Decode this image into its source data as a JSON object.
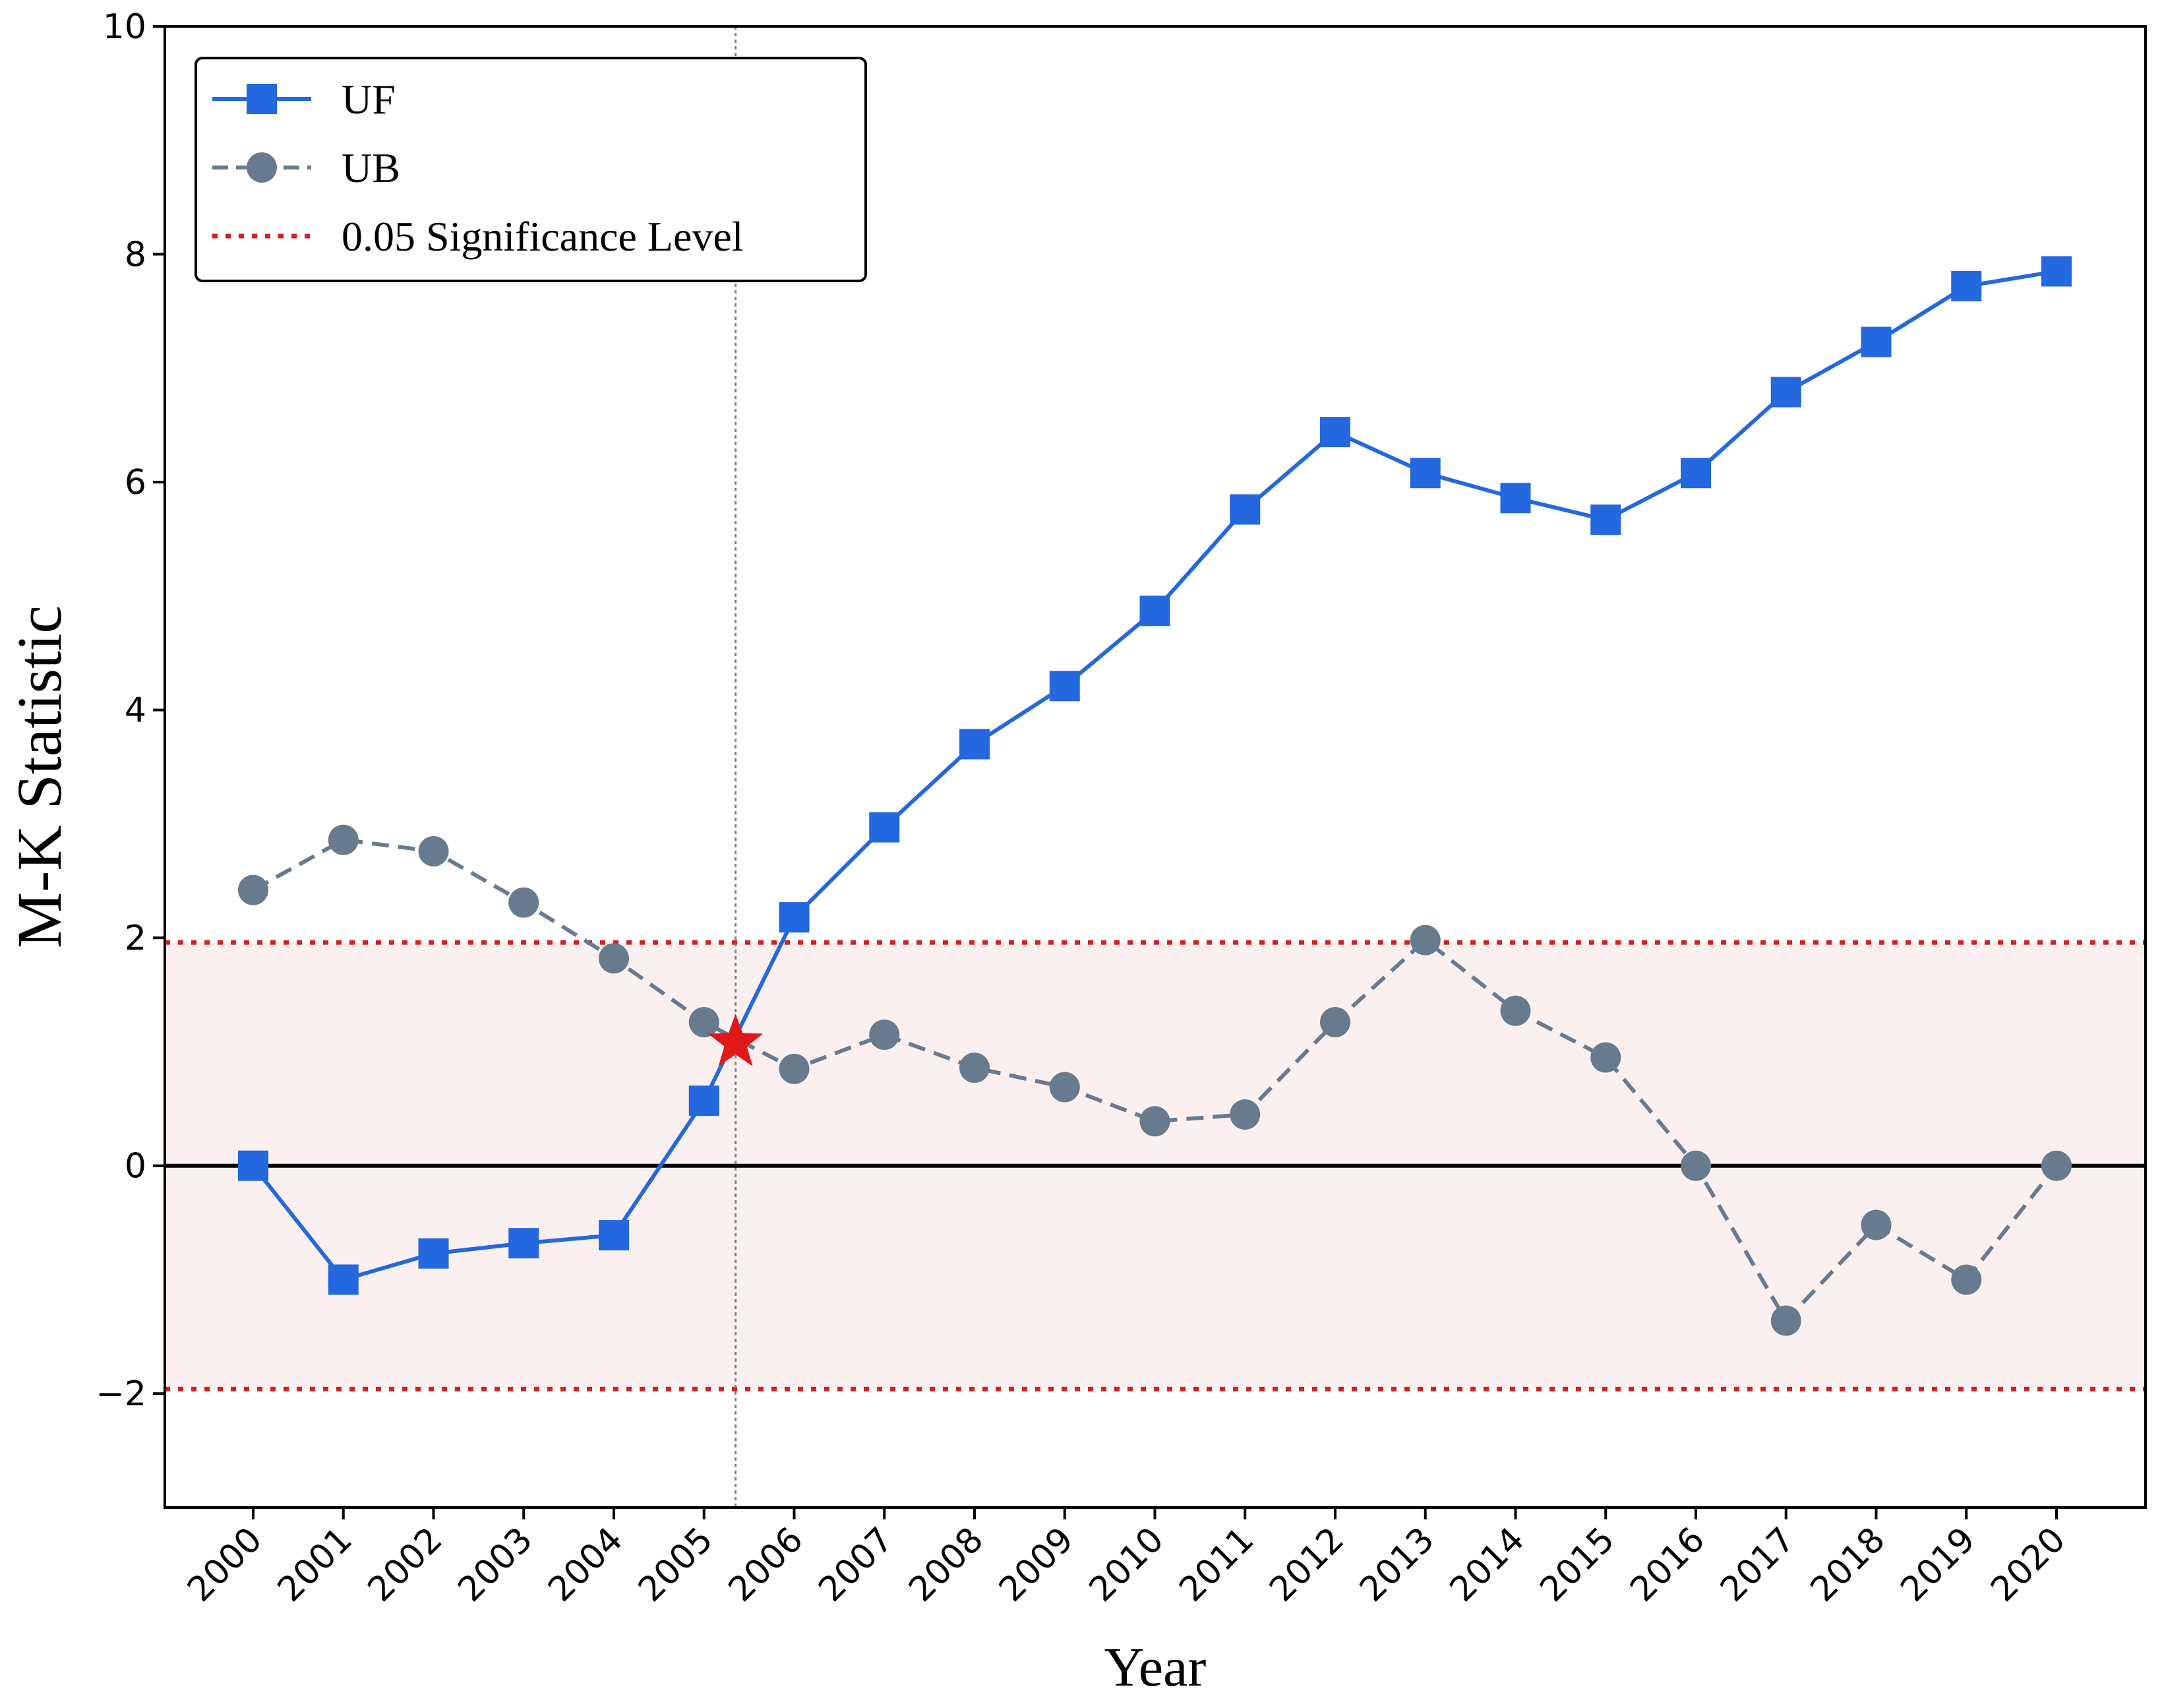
{
  "chart_data": {
    "type": "line",
    "title": "",
    "xlabel": "Year",
    "ylabel": "M-K Statistic",
    "categories": [
      "2000",
      "2001",
      "2002",
      "2003",
      "2004",
      "2005",
      "2006",
      "2007",
      "2008",
      "2009",
      "2010",
      "2011",
      "2012",
      "2013",
      "2014",
      "2015",
      "2016",
      "2017",
      "2018",
      "2019",
      "2020"
    ],
    "ylim": [
      -3,
      10
    ],
    "yticks": [
      -2,
      0,
      2,
      4,
      6,
      8,
      10
    ],
    "ytick_labels": [
      "−2",
      "0",
      "2",
      "4",
      "6",
      "8",
      "10"
    ],
    "series": [
      {
        "name": "UF",
        "color": "#2468e0",
        "marker": "square",
        "line_style": "solid",
        "values": [
          0.0,
          -1.0,
          -0.77,
          -0.68,
          -0.61,
          0.57,
          2.18,
          2.97,
          3.7,
          4.21,
          4.87,
          5.76,
          6.44,
          6.08,
          5.86,
          5.67,
          6.08,
          6.79,
          7.23,
          7.72,
          7.85
        ]
      },
      {
        "name": "UB",
        "color": "#687a8e",
        "marker": "circle",
        "line_style": "dashed",
        "values": [
          2.42,
          2.86,
          2.76,
          2.31,
          1.82,
          1.26,
          0.85,
          1.15,
          0.86,
          0.69,
          0.39,
          0.45,
          1.26,
          1.98,
          1.36,
          0.95,
          0.0,
          -1.36,
          -0.52,
          -1.0,
          0.0
        ]
      }
    ],
    "significance": {
      "name": "0.05 Significance Level",
      "upper": 1.96,
      "lower": -1.96,
      "line_color": "#d42020",
      "band_color": "#fbf0f0"
    },
    "change_point": {
      "year_position": 2005.35,
      "value": 1.08,
      "marker_color": "#e01818"
    },
    "zero_line": true,
    "grid": false,
    "legend_location": "top-left"
  }
}
